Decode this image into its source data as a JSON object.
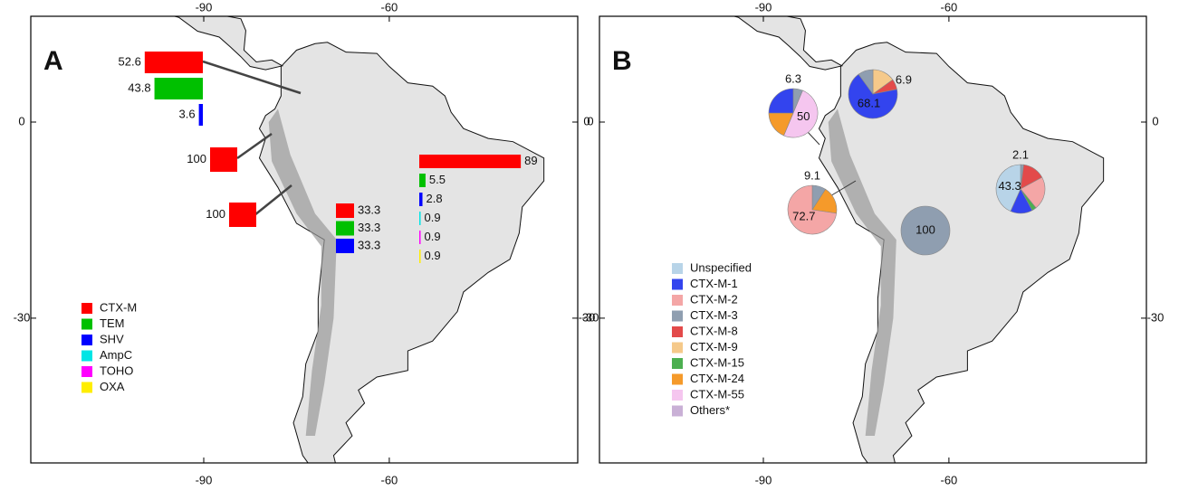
{
  "panels": [
    {
      "label": "A",
      "ticks": {
        "top": [
          -90,
          -60
        ],
        "bottom": [
          -90,
          -60
        ],
        "left": [
          0,
          -30
        ],
        "right": [
          0,
          -30
        ]
      },
      "legend": [
        {
          "name": "CTX-M",
          "color": "#ff0000"
        },
        {
          "name": "TEM",
          "color": "#00c000"
        },
        {
          "name": "SHV",
          "color": "#0000ff"
        },
        {
          "name": "AmpC",
          "color": "#00e5e5"
        },
        {
          "name": "TOHO",
          "color": "#ff00ff"
        },
        {
          "name": "OXA",
          "color": "#ffee00"
        }
      ],
      "groups": [
        {
          "bars": [
            {
              "type": "CTX-M",
              "value": 52.6
            },
            {
              "type": "TEM",
              "value": 43.8
            },
            {
              "type": "SHV",
              "value": 3.6
            }
          ]
        },
        {
          "bars": [
            {
              "type": "CTX-M",
              "value": 100
            }
          ]
        },
        {
          "bars": [
            {
              "type": "CTX-M",
              "value": 100
            }
          ]
        },
        {
          "bars": [
            {
              "type": "CTX-M",
              "value": 33.3
            },
            {
              "type": "TEM",
              "value": 33.3
            },
            {
              "type": "SHV",
              "value": 33.3
            }
          ]
        },
        {
          "bars": [
            {
              "type": "CTX-M",
              "value": 89
            },
            {
              "type": "TEM",
              "value": 5.5
            },
            {
              "type": "SHV",
              "value": 2.8
            },
            {
              "type": "AmpC",
              "value": 0.9
            },
            {
              "type": "TOHO",
              "value": 0.9
            },
            {
              "type": "OXA",
              "value": 0.9
            }
          ]
        }
      ]
    },
    {
      "label": "B",
      "ticks": {
        "top": [
          -90,
          -60
        ],
        "bottom": [
          -90,
          -60
        ],
        "left": [
          0,
          -30
        ],
        "right": [
          0,
          -30
        ]
      },
      "legend": [
        {
          "name": "Unspecified",
          "color": "#b8d4e8"
        },
        {
          "name": "CTX-M-1",
          "color": "#3344ee"
        },
        {
          "name": "CTX-M-2",
          "color": "#f4a6a6"
        },
        {
          "name": "CTX-M-3",
          "color": "#8f9eb0"
        },
        {
          "name": "CTX-M-8",
          "color": "#e34a4a"
        },
        {
          "name": "CTX-M-9",
          "color": "#f5c98a"
        },
        {
          "name": "CTX-M-15",
          "color": "#4caf50"
        },
        {
          "name": "CTX-M-24",
          "color": "#f59a2a"
        },
        {
          "name": "CTX-M-55",
          "color": "#f5c6ef"
        },
        {
          "name": "Others*",
          "color": "#c9b0d6"
        }
      ],
      "pies": [
        {
          "slices": [
            {
              "type": "CTX-M-3",
              "value": 6.3,
              "shown": true
            },
            {
              "type": "CTX-M-55",
              "value": 50,
              "shown": true
            },
            {
              "type": "CTX-M-24",
              "value": 18.7,
              "shown": false
            },
            {
              "type": "CTX-M-1",
              "value": 25,
              "shown": false
            }
          ]
        },
        {
          "slices": [
            {
              "type": "CTX-M-9",
              "value": 15,
              "shown": false
            },
            {
              "type": "CTX-M-8",
              "value": 6.9,
              "shown": true
            },
            {
              "type": "CTX-M-1",
              "value": 68.1,
              "shown": true
            },
            {
              "type": "CTX-M-3",
              "value": 10,
              "shown": false
            }
          ]
        },
        {
          "slices": [
            {
              "type": "CTX-M-3",
              "value": 9.1,
              "shown": true
            },
            {
              "type": "CTX-M-24",
              "value": 18.2,
              "shown": false
            },
            {
              "type": "CTX-M-2",
              "value": 72.7,
              "shown": true
            }
          ]
        },
        {
          "slices": [
            {
              "type": "CTX-M-3",
              "value": 100,
              "shown": true
            }
          ]
        },
        {
          "slices": [
            {
              "type": "CTX-M-3",
              "value": 2.1,
              "shown": true
            },
            {
              "type": "CTX-M-8",
              "value": 15,
              "shown": false
            },
            {
              "type": "CTX-M-2",
              "value": 22,
              "shown": false
            },
            {
              "type": "CTX-M-15",
              "value": 3,
              "shown": false
            },
            {
              "type": "CTX-M-1",
              "value": 14.6,
              "shown": false
            },
            {
              "type": "Unspecified",
              "value": 43.3,
              "shown": true
            }
          ]
        }
      ]
    }
  ]
}
